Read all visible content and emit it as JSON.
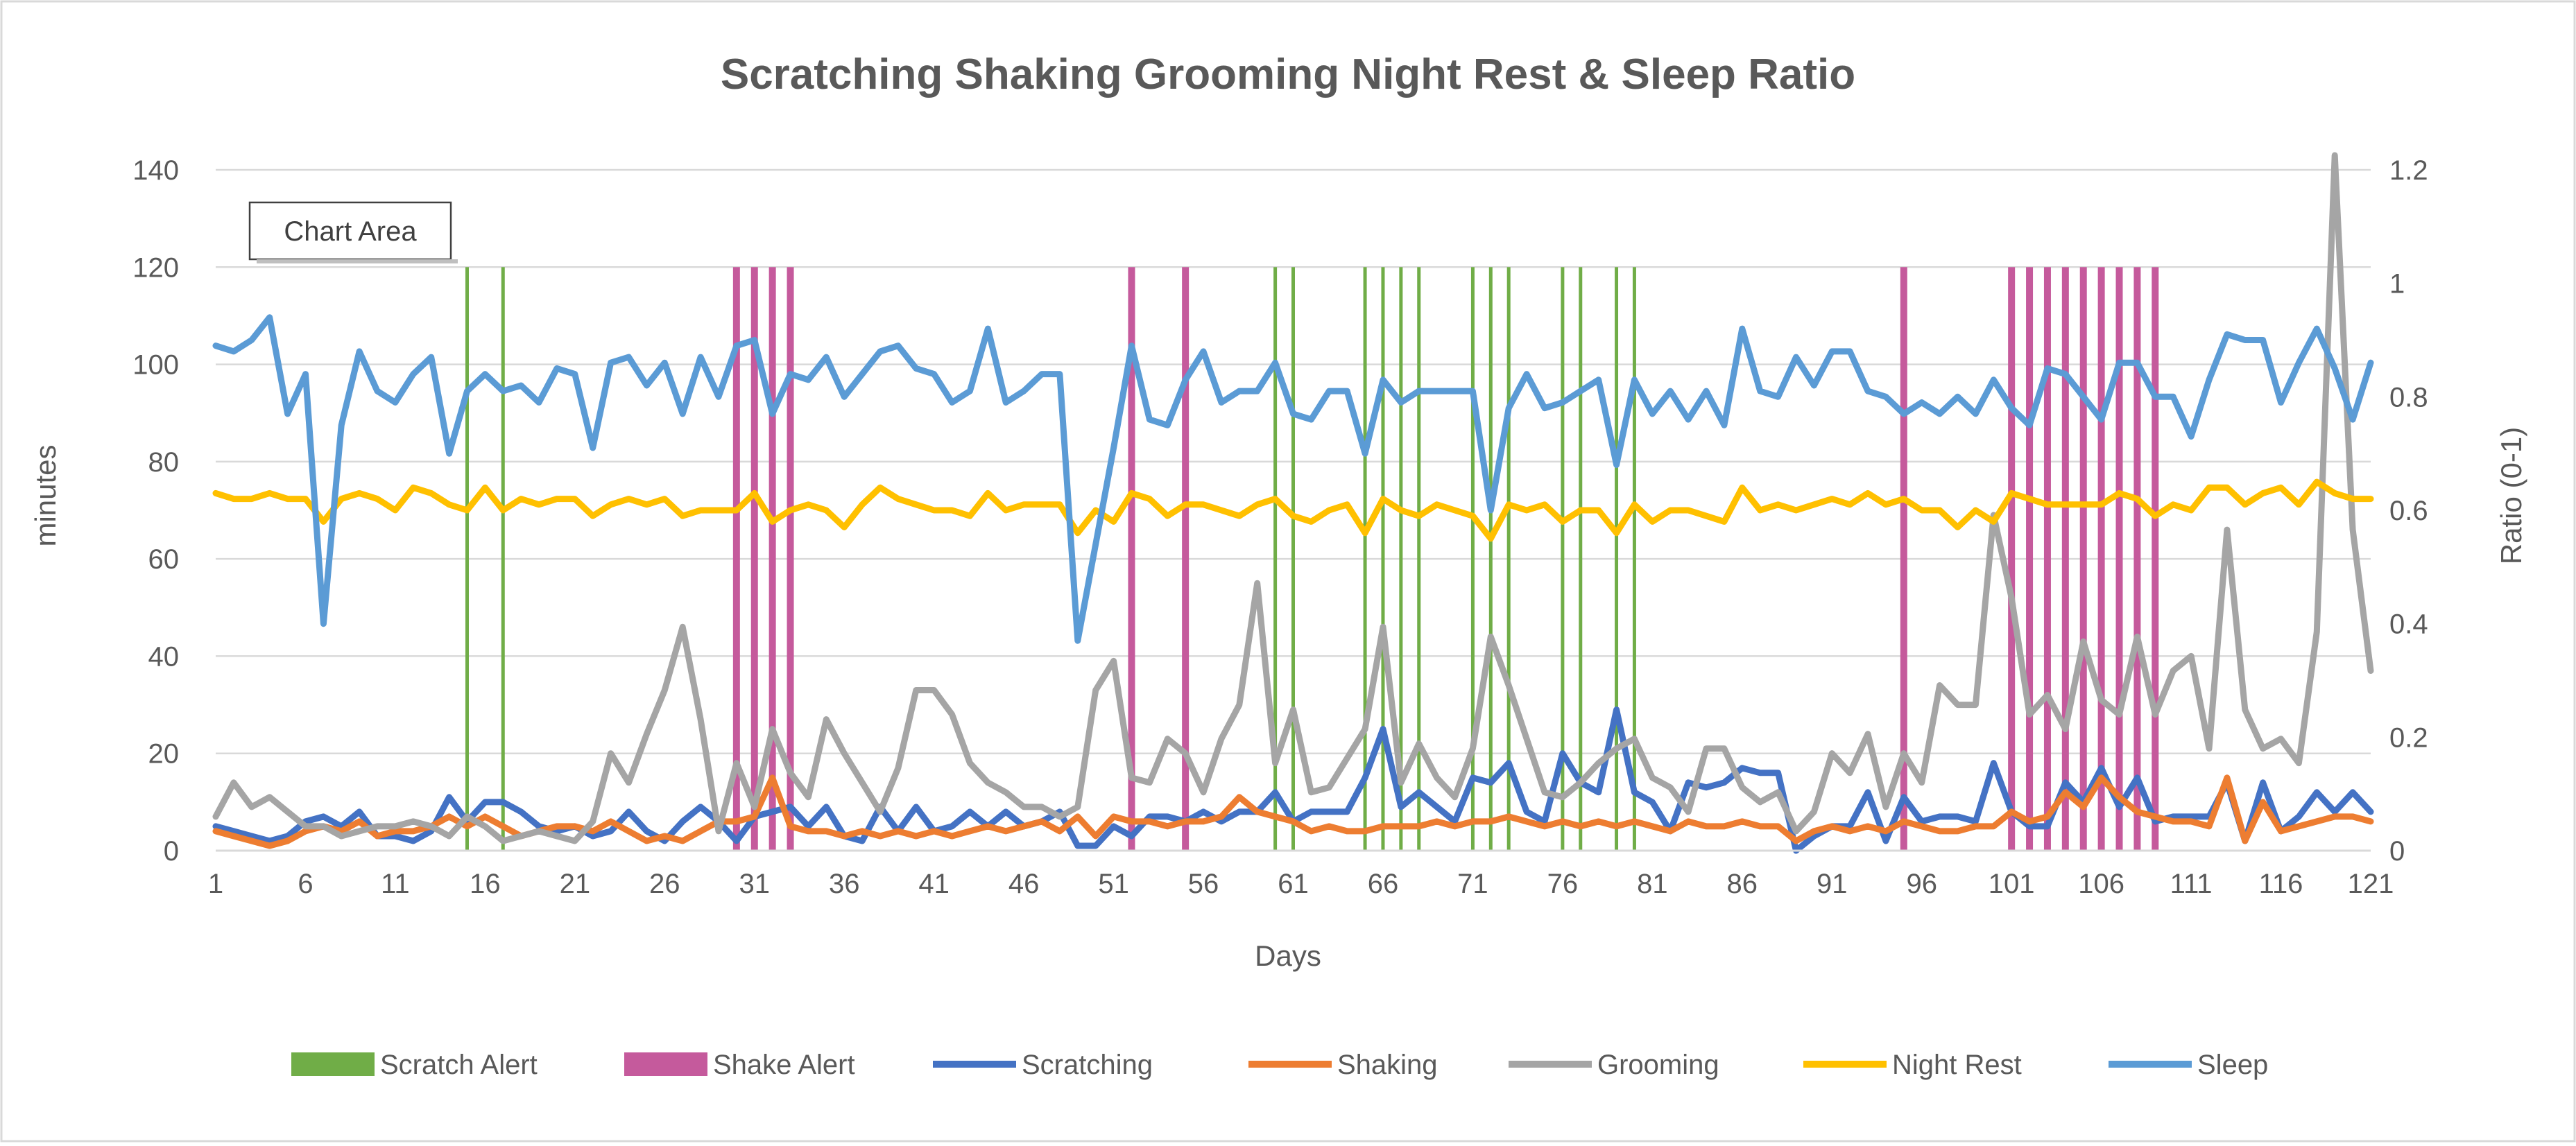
{
  "chart_data": {
    "type": "line",
    "title": "Scratching Shaking Grooming Night Rest & Sleep Ratio",
    "xlabel": "Days",
    "ylabel": "minutes",
    "y2label": "Ratio (0-1)",
    "xlim": [
      1,
      121
    ],
    "ylim": [
      0,
      140
    ],
    "y2lim": [
      0,
      1.2
    ],
    "x_ticks": [
      1,
      6,
      11,
      16,
      21,
      26,
      31,
      36,
      41,
      46,
      51,
      56,
      61,
      66,
      71,
      76,
      81,
      86,
      91,
      96,
      101,
      106,
      111,
      116,
      121
    ],
    "y_ticks": [
      0,
      20,
      40,
      60,
      80,
      100,
      120,
      140
    ],
    "y2_ticks": [
      0,
      0.2,
      0.4,
      0.6,
      0.8,
      1,
      1.2
    ],
    "y2_tick_labels": [
      "0",
      "0.2",
      "0.4",
      "0.6",
      "0.8",
      "1",
      "1.2"
    ],
    "gridlines": true,
    "legend_position": "bottom",
    "tooltip": "Chart Area",
    "alerts": [
      {
        "name": "Scratch Alert",
        "color": "#70AD47",
        "days": [
          15,
          17,
          60,
          61,
          65,
          66,
          67,
          68,
          71,
          72,
          73,
          76,
          77,
          79,
          80
        ]
      },
      {
        "name": "Shake Alert",
        "color": "#C55A9C",
        "days": [
          30,
          31,
          32,
          33,
          52,
          55,
          95,
          101,
          102,
          103,
          104,
          105,
          106,
          107,
          108,
          109
        ]
      }
    ],
    "series": [
      {
        "name": "Scratching",
        "axis": "primary",
        "color": "#4472C4",
        "values": [
          5,
          4,
          3,
          2,
          3,
          6,
          7,
          5,
          8,
          3,
          3,
          2,
          4,
          11,
          6,
          10,
          10,
          8,
          5,
          4,
          5,
          3,
          4,
          8,
          4,
          2,
          6,
          9,
          6,
          2,
          7,
          8,
          9,
          5,
          9,
          3,
          2,
          9,
          4,
          9,
          4,
          5,
          8,
          5,
          8,
          5,
          6,
          8,
          1,
          1,
          5,
          3,
          7,
          7,
          6,
          8,
          6,
          8,
          8,
          12,
          6,
          8,
          8,
          8,
          15,
          25,
          9,
          12,
          9,
          6,
          15,
          14,
          18,
          8,
          6,
          20,
          14,
          12,
          29,
          12,
          10,
          4,
          14,
          13,
          14,
          17,
          16,
          16,
          0,
          3,
          5,
          5,
          12,
          2,
          11,
          6,
          7,
          7,
          6,
          18,
          8,
          5,
          5,
          14,
          10,
          17,
          9,
          15,
          6,
          7,
          7,
          7,
          14,
          2,
          14,
          4,
          7,
          12,
          8,
          12,
          8
        ]
      },
      {
        "name": "Shaking",
        "axis": "primary",
        "color": "#ED7D31",
        "values": [
          4,
          3,
          2,
          1,
          2,
          4,
          5,
          4,
          6,
          3,
          4,
          4,
          5,
          7,
          5,
          7,
          5,
          3,
          4,
          5,
          5,
          4,
          6,
          4,
          2,
          3,
          2,
          4,
          6,
          6,
          7,
          15,
          5,
          4,
          4,
          3,
          4,
          3,
          4,
          3,
          4,
          3,
          4,
          5,
          4,
          5,
          6,
          4,
          7,
          3,
          7,
          6,
          6,
          5,
          6,
          6,
          7,
          11,
          8,
          7,
          6,
          4,
          5,
          4,
          4,
          5,
          5,
          5,
          6,
          5,
          6,
          6,
          7,
          6,
          5,
          6,
          5,
          6,
          5,
          6,
          5,
          4,
          6,
          5,
          5,
          6,
          5,
          5,
          2,
          4,
          5,
          4,
          5,
          4,
          6,
          5,
          4,
          4,
          5,
          5,
          8,
          6,
          7,
          12,
          9,
          15,
          11,
          8,
          7,
          6,
          6,
          5,
          15,
          2,
          10,
          4,
          5,
          6,
          7,
          7,
          6
        ]
      },
      {
        "name": "Grooming",
        "axis": "primary",
        "color": "#A5A5A5",
        "values": [
          7,
          14,
          9,
          11,
          8,
          5,
          5,
          3,
          4,
          5,
          5,
          6,
          5,
          3,
          7,
          5,
          2,
          3,
          4,
          3,
          2,
          6,
          20,
          14,
          24,
          33,
          46,
          27,
          4,
          18,
          9,
          25,
          16,
          11,
          27,
          20,
          14,
          8,
          17,
          33,
          33,
          28,
          18,
          14,
          12,
          9,
          9,
          7,
          9,
          33,
          39,
          15,
          14,
          23,
          20,
          12,
          23,
          30,
          55,
          18,
          29,
          12,
          13,
          19,
          25,
          46,
          14,
          22,
          15,
          11,
          21,
          44,
          34,
          23,
          12,
          11,
          14,
          18,
          21,
          23,
          15,
          13,
          8,
          21,
          21,
          13,
          10,
          12,
          4,
          8,
          20,
          16,
          24,
          9,
          20,
          14,
          34,
          30,
          30,
          69,
          52,
          28,
          32,
          25,
          43,
          31,
          28,
          44,
          28,
          37,
          40,
          21,
          66,
          29,
          21,
          23,
          18,
          45,
          143,
          66,
          37
        ]
      },
      {
        "name": "Night Rest",
        "axis": "secondary",
        "color": "#FFC000",
        "values": [
          0.63,
          0.62,
          0.62,
          0.63,
          0.62,
          0.62,
          0.58,
          0.62,
          0.63,
          0.62,
          0.6,
          0.64,
          0.63,
          0.61,
          0.6,
          0.64,
          0.6,
          0.62,
          0.61,
          0.62,
          0.62,
          0.59,
          0.61,
          0.62,
          0.61,
          0.62,
          0.59,
          0.6,
          0.6,
          0.6,
          0.63,
          0.58,
          0.6,
          0.61,
          0.6,
          0.57,
          0.61,
          0.64,
          0.62,
          0.61,
          0.6,
          0.6,
          0.59,
          0.63,
          0.6,
          0.61,
          0.61,
          0.61,
          0.56,
          0.6,
          0.58,
          0.63,
          0.62,
          0.59,
          0.61,
          0.61,
          0.6,
          0.59,
          0.61,
          0.62,
          0.59,
          0.58,
          0.6,
          0.61,
          0.56,
          0.62,
          0.6,
          0.59,
          0.61,
          0.6,
          0.59,
          0.55,
          0.61,
          0.6,
          0.61,
          0.58,
          0.6,
          0.6,
          0.56,
          0.61,
          0.58,
          0.6,
          0.6,
          0.59,
          0.58,
          0.64,
          0.6,
          0.61,
          0.6,
          0.61,
          0.62,
          0.61,
          0.63,
          0.61,
          0.62,
          0.6,
          0.6,
          0.57,
          0.6,
          0.58,
          0.63,
          0.62,
          0.61,
          0.61,
          0.61,
          0.61,
          0.63,
          0.62,
          0.59,
          0.61,
          0.6,
          0.64,
          0.64,
          0.61,
          0.63,
          0.64,
          0.61,
          0.65,
          0.63,
          0.62,
          0.62
        ]
      },
      {
        "name": "Sleep",
        "axis": "secondary",
        "color": "#5B9BD5",
        "values": [
          0.89,
          0.88,
          0.9,
          0.94,
          0.77,
          0.84,
          0.4,
          0.75,
          0.88,
          0.81,
          0.79,
          0.84,
          0.87,
          0.7,
          0.81,
          0.84,
          0.81,
          0.82,
          0.79,
          0.85,
          0.84,
          0.71,
          0.86,
          0.87,
          0.82,
          0.86,
          0.77,
          0.87,
          0.8,
          0.89,
          0.9,
          0.77,
          0.84,
          0.83,
          0.87,
          0.8,
          0.84,
          0.88,
          0.89,
          0.85,
          0.84,
          0.79,
          0.81,
          0.92,
          0.79,
          0.81,
          0.84,
          0.84,
          0.37,
          0.54,
          0.71,
          0.89,
          0.76,
          0.75,
          0.83,
          0.88,
          0.79,
          0.81,
          0.81,
          0.86,
          0.77,
          0.76,
          0.81,
          0.81,
          0.7,
          0.83,
          0.79,
          0.81,
          0.81,
          0.81,
          0.81,
          0.6,
          0.78,
          0.84,
          0.78,
          0.79,
          0.81,
          0.83,
          0.68,
          0.83,
          0.77,
          0.81,
          0.76,
          0.81,
          0.75,
          0.92,
          0.81,
          0.8,
          0.87,
          0.82,
          0.88,
          0.88,
          0.81,
          0.8,
          0.77,
          0.79,
          0.77,
          0.8,
          0.77,
          0.83,
          0.78,
          0.75,
          0.85,
          0.84,
          0.8,
          0.76,
          0.86,
          0.86,
          0.8,
          0.8,
          0.73,
          0.83,
          0.91,
          0.9,
          0.9,
          0.79,
          0.86,
          0.92,
          0.85,
          0.76,
          0.86
        ]
      }
    ]
  }
}
